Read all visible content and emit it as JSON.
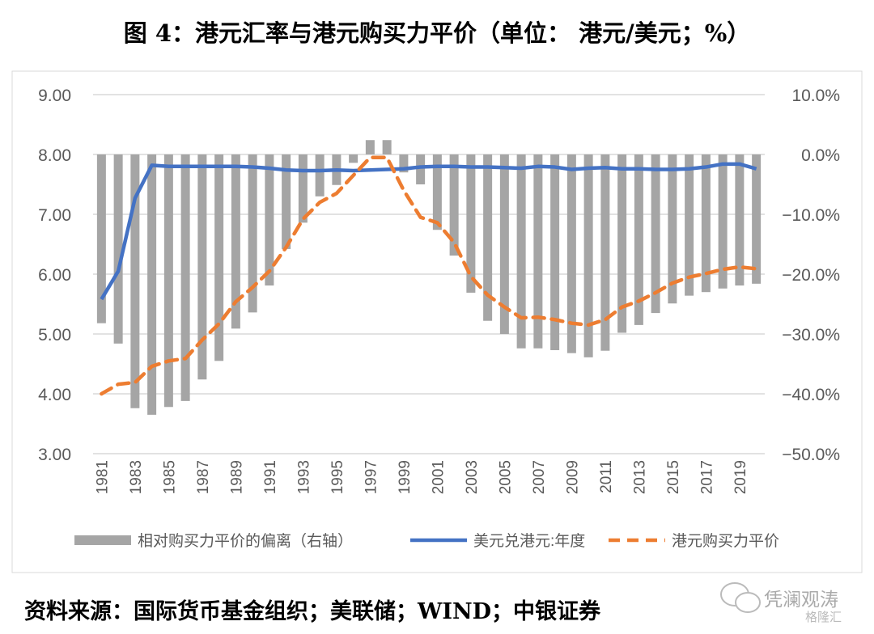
{
  "title": "图 4：港元汇率与港元购买力平价（单位：  港元/美元；%）",
  "source": "资料来源：国际货币基金组织；美联储；WIND；中银证券",
  "watermark": {
    "primary": "凭澜观涛",
    "secondary": "格隆汇"
  },
  "chart_data": {
    "type": "bar+line",
    "title": "图 4：港元汇率与港元购买力平价（单位：  港元/美元；%）",
    "grid": true,
    "legend": "bottom",
    "categories": [
      1981,
      1982,
      1983,
      1984,
      1985,
      1986,
      1987,
      1988,
      1989,
      1990,
      1991,
      1992,
      1993,
      1994,
      1995,
      1996,
      1997,
      1998,
      1999,
      2000,
      2001,
      2002,
      2003,
      2004,
      2005,
      2006,
      2007,
      2008,
      2009,
      2010,
      2011,
      2012,
      2013,
      2014,
      2015,
      2016,
      2017,
      2018,
      2019,
      2020
    ],
    "x_tick_labels": [
      "1981",
      "1983",
      "1985",
      "1987",
      "1989",
      "1991",
      "1993",
      "1995",
      "1997",
      "1999",
      "2001",
      "2003",
      "2005",
      "2007",
      "2009",
      "2011",
      "2013",
      "2015",
      "2017",
      "2019"
    ],
    "left_axis": {
      "range": [
        3,
        9
      ],
      "ticks": [
        "3.00",
        "4.00",
        "5.00",
        "6.00",
        "7.00",
        "8.00",
        "9.00"
      ]
    },
    "right_axis": {
      "range": [
        -50,
        10
      ],
      "ticks": [
        "-50.0%",
        "-40.0%",
        "-30.0%",
        "-20.0%",
        "-10.0%",
        "0.0%",
        "10.0%"
      ]
    },
    "series": [
      {
        "name": "相对购买力平价的偏离（右轴）",
        "type": "bar",
        "axis": "right",
        "color": "#a5a5a5",
        "values": [
          -28.2,
          -31.6,
          -42.4,
          -43.5,
          -42.2,
          -41.2,
          -37.6,
          -34.5,
          -29.1,
          -26.4,
          -21.9,
          -15.8,
          -11.4,
          -7.0,
          -5.1,
          -1.4,
          2.4,
          2.4,
          -3.0,
          -5.0,
          -12.6,
          -16.9,
          -23.1,
          -27.8,
          -30.0,
          -32.4,
          -32.4,
          -32.7,
          -33.2,
          -33.9,
          -32.8,
          -29.8,
          -28.5,
          -26.5,
          -24.9,
          -23.6,
          -23.0,
          -22.4,
          -21.9,
          -21.6
        ]
      },
      {
        "name": "美元兑港元:年度",
        "type": "line",
        "axis": "left",
        "color": "#4472c4",
        "values": [
          5.58,
          6.05,
          7.27,
          7.82,
          7.8,
          7.8,
          7.8,
          7.8,
          7.8,
          7.79,
          7.77,
          7.74,
          7.73,
          7.73,
          7.74,
          7.73,
          7.74,
          7.75,
          7.76,
          7.79,
          7.8,
          7.8,
          7.79,
          7.79,
          7.78,
          7.77,
          7.8,
          7.79,
          7.75,
          7.77,
          7.78,
          7.76,
          7.76,
          7.75,
          7.75,
          7.76,
          7.79,
          7.84,
          7.84,
          7.76
        ]
      },
      {
        "name": "港元购买力平价",
        "type": "line",
        "dashed": true,
        "axis": "left",
        "color": "#ed7d31",
        "values": [
          4.0,
          4.16,
          4.19,
          4.46,
          4.55,
          4.59,
          4.9,
          5.17,
          5.54,
          5.78,
          6.05,
          6.45,
          6.92,
          7.2,
          7.35,
          7.65,
          7.95,
          7.95,
          7.4,
          6.95,
          6.86,
          6.53,
          5.96,
          5.65,
          5.45,
          5.27,
          5.28,
          5.24,
          5.18,
          5.15,
          5.24,
          5.45,
          5.55,
          5.69,
          5.85,
          5.95,
          6.01,
          6.08,
          6.12,
          6.09
        ]
      }
    ]
  }
}
